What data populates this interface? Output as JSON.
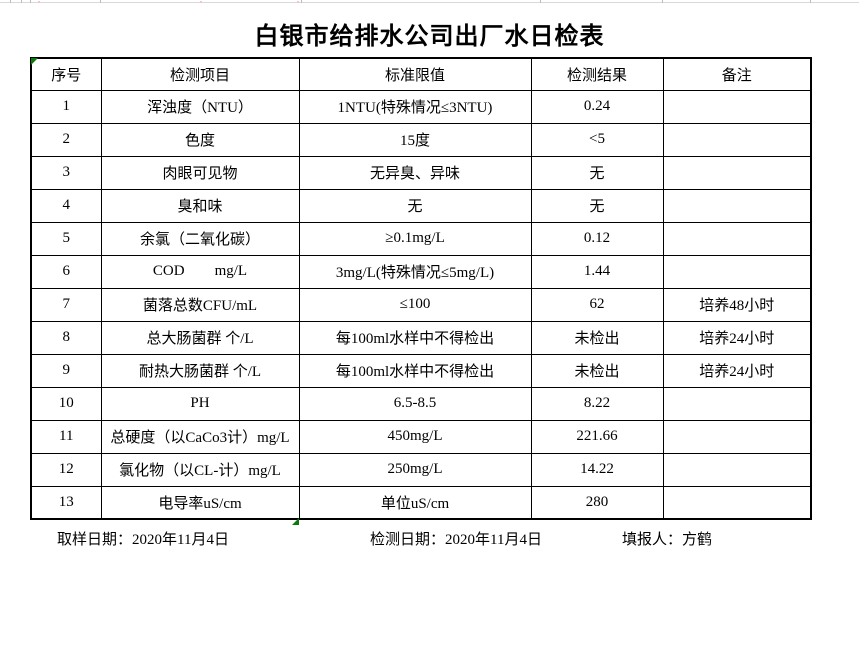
{
  "page": {
    "title": "白银市给排水公司出厂水日检表"
  },
  "table": {
    "headers": [
      "序号",
      "检测项目",
      "标准限值",
      "检测结果",
      "备注"
    ],
    "rows": [
      [
        "1",
        "浑浊度（NTU）",
        "1NTU(特殊情况≤3NTU)",
        "0.24",
        ""
      ],
      [
        "2",
        "色度",
        "15度",
        "<5",
        ""
      ],
      [
        "3",
        "肉眼可见物",
        "无异臭、异味",
        "无",
        ""
      ],
      [
        "4",
        "臭和味",
        "无",
        "无",
        ""
      ],
      [
        "5",
        "余氯（二氧化碳）",
        "≥0.1mg/L",
        "0.12",
        ""
      ],
      [
        "6",
        "COD        mg/L",
        "3mg/L(特殊情况≤5mg/L)",
        "1.44",
        ""
      ],
      [
        "7",
        "菌落总数CFU/mL",
        "≤100",
        "62",
        "培养48小时"
      ],
      [
        "8",
        "总大肠菌群 个/L",
        "每100ml水样中不得检出",
        "未检出",
        "培养24小时"
      ],
      [
        "9",
        "耐热大肠菌群 个/L",
        "每100ml水样中不得检出",
        "未检出",
        "培养24小时"
      ],
      [
        "10",
        "PH",
        "6.5-8.5",
        "8.22",
        ""
      ],
      [
        "11",
        "总硬度（以CaCo3计）mg/L",
        "450mg/L",
        "221.66",
        ""
      ],
      [
        "12",
        "氯化物（以CL-计）mg/L",
        "250mg/L",
        "14.22",
        ""
      ],
      [
        "13",
        "电导率uS/cm",
        "单位uS/cm",
        "280",
        ""
      ]
    ]
  },
  "footer": {
    "items": [
      {
        "label": "取样日期：",
        "value": "2020年11月4日"
      },
      {
        "label": "检测日期：",
        "value": "2020年11月4日"
      },
      {
        "label": "填报人：",
        "value": "方鹤"
      }
    ]
  },
  "marks": {
    "accent_green": "#0a7a0a",
    "corner_triangle": "excel-error-indicator",
    "bottom_wedge": "excel-fill-artifact"
  }
}
